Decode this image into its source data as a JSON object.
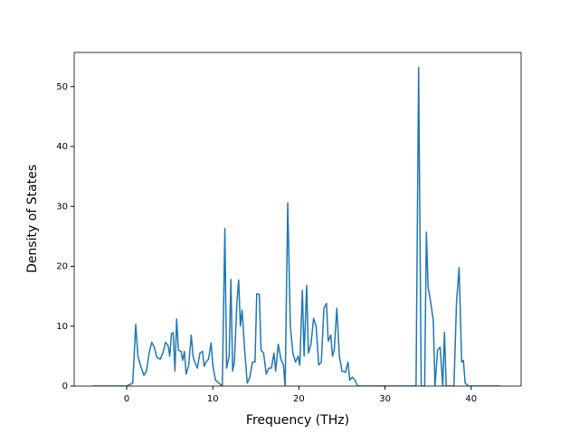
{
  "chart_data": {
    "type": "line",
    "xlabel": "Frequency (THz)",
    "ylabel": "Density of States",
    "x": [
      -4,
      0,
      0.7,
      1.05,
      1.3,
      1.7,
      2.0,
      2.3,
      2.6,
      2.9,
      3.2,
      3.5,
      3.9,
      4.2,
      4.5,
      4.8,
      5.0,
      5.2,
      5.4,
      5.6,
      5.8,
      6.0,
      6.3,
      6.5,
      6.7,
      6.9,
      7.2,
      7.5,
      7.7,
      7.9,
      8.2,
      8.5,
      8.8,
      9.0,
      9.2,
      9.5,
      9.8,
      10.0,
      10.3,
      10.7,
      11.1,
      11.4,
      11.6,
      11.9,
      12.1,
      12.3,
      12.5,
      12.8,
      13.0,
      13.2,
      13.4,
      13.7,
      14.0,
      14.3,
      14.6,
      14.9,
      15.1,
      15.4,
      15.6,
      15.9,
      16.2,
      16.5,
      16.8,
      17.1,
      17.3,
      17.6,
      17.9,
      18.2,
      18.4,
      18.7,
      19.0,
      19.3,
      19.6,
      19.9,
      20.1,
      20.4,
      20.6,
      20.9,
      21.1,
      21.4,
      21.7,
      22.0,
      22.3,
      22.6,
      22.9,
      23.2,
      23.4,
      23.7,
      23.9,
      24.1,
      24.4,
      24.7,
      25.0,
      25.4,
      25.7,
      25.9,
      26.2,
      26.5,
      26.8,
      33.6,
      33.9,
      34.2,
      34.6,
      34.8,
      35.0,
      35.3,
      35.6,
      35.8,
      36.1,
      36.4,
      36.7,
      36.9,
      37.1,
      38.0,
      38.3,
      38.6,
      38.9,
      39.1,
      39.3,
      39.7,
      43.4
    ],
    "series": [
      {
        "color": "#1f77b4",
        "values": [
          0,
          0,
          0.5,
          10.3,
          5,
          3,
          1.8,
          2.5,
          5.5,
          7.3,
          6.5,
          4.8,
          4.5,
          5.5,
          7.3,
          6.8,
          5,
          8.8,
          8.9,
          2.5,
          11.2,
          6,
          5.8,
          4.3,
          5.8,
          2,
          3.5,
          8.5,
          5,
          4,
          3,
          5.5,
          5.8,
          3.3,
          4,
          4.5,
          7.2,
          3.5,
          1,
          0.5,
          0,
          26.3,
          3,
          5,
          17.8,
          2.5,
          4,
          14,
          17.7,
          10,
          12.7,
          6,
          0.5,
          1.5,
          4,
          4,
          15.4,
          15.3,
          6,
          5.5,
          2,
          3,
          3,
          5.5,
          2.5,
          7,
          4.5,
          3.5,
          0,
          30.6,
          10,
          5.5,
          4,
          5,
          3.5,
          16,
          5,
          16.8,
          5.5,
          7,
          11.3,
          10,
          3.5,
          4,
          13,
          13.8,
          7.5,
          8.5,
          5,
          6,
          13,
          5,
          2.5,
          2.3,
          4,
          1,
          1.5,
          1,
          0,
          0,
          53.2,
          0,
          0,
          25.7,
          16.5,
          14,
          11,
          0,
          6,
          6.5,
          0,
          9,
          0,
          0,
          14,
          19.8,
          4,
          4.3,
          0.5,
          0,
          0
        ]
      }
    ],
    "xlim": [
      -6.1,
      45.8
    ],
    "ylim": [
      0,
      55.7
    ],
    "xticks": [
      0,
      10,
      20,
      30,
      40
    ],
    "yticks": [
      0,
      10,
      20,
      30,
      40,
      50
    ],
    "grid": false
  }
}
